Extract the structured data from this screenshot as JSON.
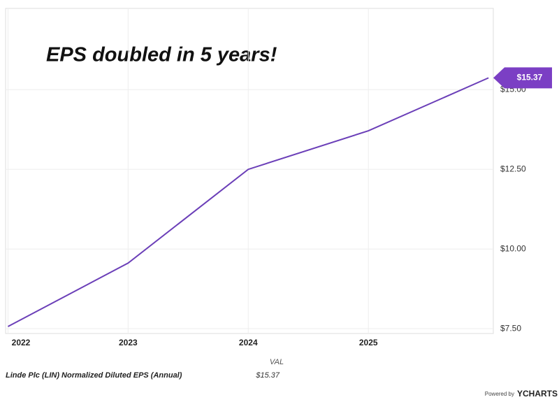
{
  "chart_data": {
    "type": "line",
    "annotation": "EPS doubled in 5 years!",
    "x": [
      2022,
      2023,
      2024,
      2025,
      2026
    ],
    "xlim": [
      2021.98,
      2026.04
    ],
    "xticks": [
      2022,
      2023,
      2024,
      2025
    ],
    "ylim": [
      7.35,
      17.55
    ],
    "yticks": [
      {
        "value": 7.5,
        "label": "$7.50"
      },
      {
        "value": 10,
        "label": "$10.00"
      },
      {
        "value": 12.5,
        "label": "$12.50"
      },
      {
        "value": 15,
        "label": "$15.00"
      }
    ],
    "grid": true,
    "series": [
      {
        "name": "Linde Plc (LIN) Normalized Diluted EPS (Annual)",
        "color": "#6b3fb8",
        "values": [
          7.57,
          9.56,
          12.5,
          13.71,
          15.37
        ],
        "value_labels": [
          null,
          null,
          null,
          null,
          "$15.37"
        ]
      }
    ],
    "table": {
      "header": "VAL",
      "value": "$15.37"
    },
    "footer": {
      "powered": "Powered by",
      "brand": "YCHARTS"
    }
  }
}
